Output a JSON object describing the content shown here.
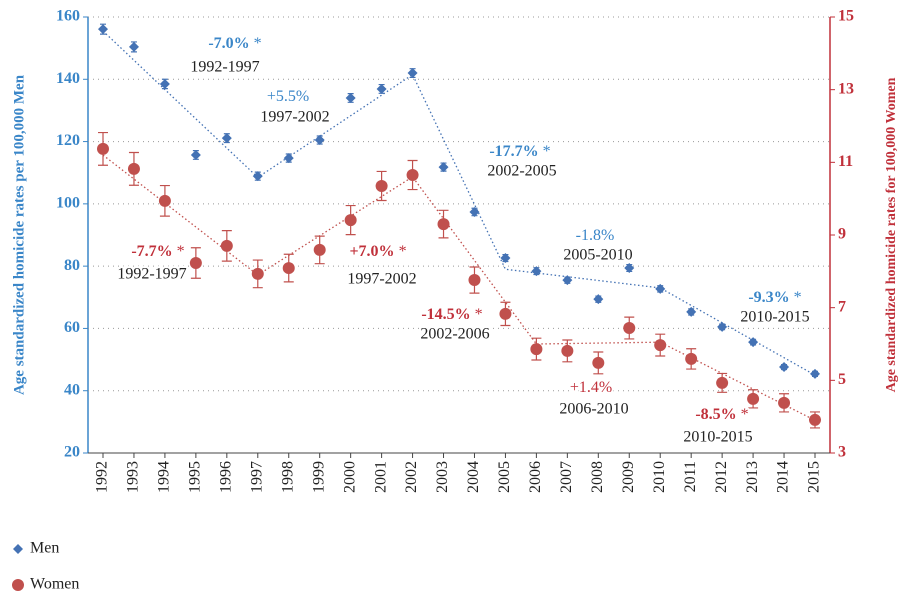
{
  "chart_data": {
    "type": "line",
    "ylabel": "Age standardized homicide rates per 100,000 Men",
    "y2label": "Age standardized homicide rates for 100,000 Women",
    "categories": [
      "1992",
      "1993",
      "1994",
      "1995",
      "1996",
      "1997",
      "1998",
      "1999",
      "2000",
      "2001",
      "2002",
      "2003",
      "2004",
      "2005",
      "2006",
      "2007",
      "2008",
      "2009",
      "2010",
      "2011",
      "2012",
      "2013",
      "2014",
      "2015"
    ],
    "ylim": [
      20,
      160
    ],
    "yticks": [
      20,
      40,
      60,
      80,
      100,
      120,
      140,
      160
    ],
    "y2lim": [
      3,
      15
    ],
    "y2ticks": [
      3,
      5,
      7,
      9,
      11,
      13,
      15
    ],
    "grid": true,
    "legend": "bottom-left",
    "series": [
      {
        "name": "Men",
        "color": "#4472b4",
        "text_color": "#3a86c8",
        "marker": "diamond",
        "axis": "y",
        "values": [
          156.1,
          150.4,
          138.5,
          115.7,
          121.1,
          108.9,
          114.7,
          120.5,
          134.0,
          136.9,
          142.0,
          111.8,
          97.4,
          82.6,
          78.4,
          75.5,
          69.4,
          79.4,
          72.7,
          65.3,
          60.5,
          55.6,
          47.6,
          45.4
        ],
        "errors": [
          1.6,
          1.6,
          1.5,
          1.4,
          1.4,
          1.3,
          1.3,
          1.3,
          1.4,
          1.4,
          1.4,
          1.3,
          1.2,
          1.1,
          1.1,
          1.0,
          1.0,
          1.1,
          1.0,
          1.0,
          0.9,
          0.9,
          0.8,
          0.8
        ],
        "trend_x": [
          1992,
          1997,
          2002,
          2005,
          2010,
          2015
        ],
        "trend_values": [
          155.5,
          108.5,
          141.5,
          79,
          73,
          45
        ],
        "annotations": [
          {
            "change": "-7.0%",
            "mark": "*",
            "period": "1992-1997"
          },
          {
            "change": "+5.5%",
            "period": "1997-2002"
          },
          {
            "change": "-17.7%",
            "mark": "*",
            "period": "2002-2005"
          },
          {
            "change": "-1.8%",
            "period": "2005-2010"
          },
          {
            "change": "-9.3%",
            "mark": "*",
            "period": "2010-2015"
          }
        ]
      },
      {
        "name": "Women",
        "color": "#c0504d",
        "text_color": "#c0303a",
        "marker": "circle",
        "axis": "y2",
        "values": [
          11.37,
          10.82,
          9.94,
          8.23,
          8.7,
          7.93,
          8.09,
          8.59,
          9.41,
          10.35,
          10.65,
          9.3,
          7.76,
          6.83,
          5.86,
          5.81,
          5.48,
          6.44,
          5.97,
          5.59,
          4.93,
          4.49,
          4.38,
          3.91
        ],
        "errors": [
          0.45,
          0.45,
          0.42,
          0.42,
          0.42,
          0.38,
          0.38,
          0.38,
          0.4,
          0.4,
          0.4,
          0.38,
          0.36,
          0.32,
          0.3,
          0.3,
          0.3,
          0.3,
          0.3,
          0.28,
          0.26,
          0.25,
          0.25,
          0.22
        ],
        "trend_x": [
          1992,
          1997,
          2002,
          2006,
          2010,
          2015
        ],
        "trend_values": [
          11.2,
          7.9,
          10.6,
          6.0,
          6.05,
          3.9
        ],
        "annotations": [
          {
            "change": "-7.7%",
            "mark": "*",
            "period": "1992-1997"
          },
          {
            "change": "+7.0%",
            "mark": "*",
            "period": "1997-2002"
          },
          {
            "change": "-14.5%",
            "mark": "*",
            "period": "2002-2006"
          },
          {
            "change": "+1.4%",
            "period": "2006-2010"
          },
          {
            "change": "-8.5%",
            "mark": "*",
            "period": "2010-2015"
          }
        ]
      }
    ]
  }
}
